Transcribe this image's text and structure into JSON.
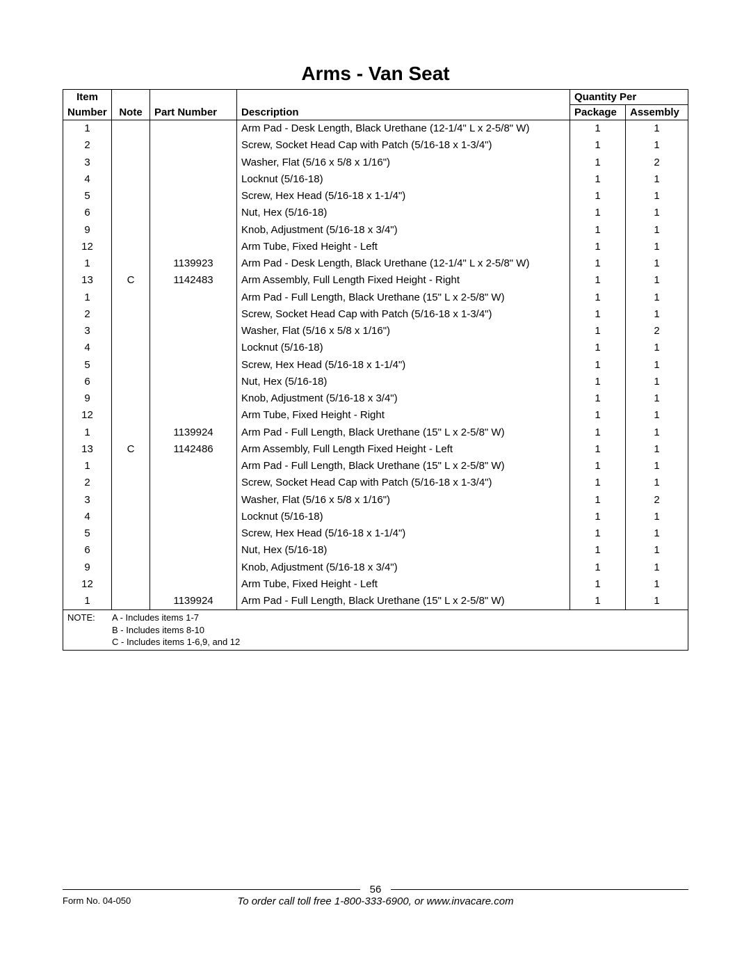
{
  "title": "Arms - Van Seat",
  "headers": {
    "item_top": "Item",
    "item_bottom": "Number",
    "note": "Note",
    "part": "Part Number",
    "desc": "Description",
    "qty_span": "Quantity Per",
    "pkg": "Package",
    "asm": "Assembly"
  },
  "rows": [
    {
      "item": "1",
      "note": "",
      "part": "",
      "desc": "Arm Pad - Desk Length, Black Urethane (12-1/4\" L x 2-5/8\" W)",
      "pkg": "1",
      "asm": "1"
    },
    {
      "item": "2",
      "note": "",
      "part": "",
      "desc": "Screw, Socket Head Cap with Patch (5/16-18 x 1-3/4\")",
      "pkg": "1",
      "asm": "1"
    },
    {
      "item": "3",
      "note": "",
      "part": "",
      "desc": "Washer, Flat (5/16 x 5/8 x 1/16\")",
      "pkg": "1",
      "asm": "2"
    },
    {
      "item": "4",
      "note": "",
      "part": "",
      "desc": "Locknut (5/16-18)",
      "pkg": "1",
      "asm": "1"
    },
    {
      "item": "5",
      "note": "",
      "part": "",
      "desc": "Screw, Hex Head (5/16-18 x 1-1/4\")",
      "pkg": "1",
      "asm": "1"
    },
    {
      "item": "6",
      "note": "",
      "part": "",
      "desc": "Nut, Hex (5/16-18)",
      "pkg": "1",
      "asm": "1"
    },
    {
      "item": "9",
      "note": "",
      "part": "",
      "desc": "Knob, Adjustment (5/16-18 x 3/4\")",
      "pkg": "1",
      "asm": "1"
    },
    {
      "item": "12",
      "note": "",
      "part": "",
      "desc": "Arm Tube, Fixed Height - Left",
      "pkg": "1",
      "asm": "1"
    },
    {
      "item": "1",
      "note": "",
      "part": "1139923",
      "desc": "Arm Pad - Desk Length, Black Urethane (12-1/4\" L x 2-5/8\" W)",
      "pkg": "1",
      "asm": "1"
    },
    {
      "item": "13",
      "note": "C",
      "part": "1142483",
      "desc": "Arm Assembly, Full Length Fixed Height - Right",
      "pkg": "1",
      "asm": "1"
    },
    {
      "item": "1",
      "note": "",
      "part": "",
      "desc": "Arm Pad - Full Length, Black Urethane (15\" L x 2-5/8\" W)",
      "pkg": "1",
      "asm": "1"
    },
    {
      "item": "2",
      "note": "",
      "part": "",
      "desc": "Screw, Socket Head Cap with Patch (5/16-18 x 1-3/4\")",
      "pkg": "1",
      "asm": "1"
    },
    {
      "item": "3",
      "note": "",
      "part": "",
      "desc": "Washer, Flat (5/16 x 5/8 x 1/16\")",
      "pkg": "1",
      "asm": "2"
    },
    {
      "item": "4",
      "note": "",
      "part": "",
      "desc": "Locknut (5/16-18)",
      "pkg": "1",
      "asm": "1"
    },
    {
      "item": "5",
      "note": "",
      "part": "",
      "desc": "Screw, Hex Head (5/16-18 x 1-1/4\")",
      "pkg": "1",
      "asm": "1"
    },
    {
      "item": "6",
      "note": "",
      "part": "",
      "desc": "Nut, Hex (5/16-18)",
      "pkg": "1",
      "asm": "1"
    },
    {
      "item": "9",
      "note": "",
      "part": "",
      "desc": "Knob, Adjustment (5/16-18 x 3/4\")",
      "pkg": "1",
      "asm": "1"
    },
    {
      "item": "12",
      "note": "",
      "part": "",
      "desc": "Arm Tube, Fixed Height - Right",
      "pkg": "1",
      "asm": "1"
    },
    {
      "item": "1",
      "note": "",
      "part": "1139924",
      "desc": "Arm Pad - Full Length, Black Urethane (15\" L x 2-5/8\" W)",
      "pkg": "1",
      "asm": "1"
    },
    {
      "item": "13",
      "note": "C",
      "part": "1142486",
      "desc": "Arm Assembly, Full Length Fixed Height - Left",
      "pkg": "1",
      "asm": "1"
    },
    {
      "item": "1",
      "note": "",
      "part": "",
      "desc": "Arm Pad - Full Length, Black Urethane (15\" L x 2-5/8\" W)",
      "pkg": "1",
      "asm": "1"
    },
    {
      "item": "2",
      "note": "",
      "part": "",
      "desc": "Screw, Socket Head Cap with Patch (5/16-18 x 1-3/4\")",
      "pkg": "1",
      "asm": "1"
    },
    {
      "item": "3",
      "note": "",
      "part": "",
      "desc": "Washer, Flat (5/16 x 5/8 x 1/16\")",
      "pkg": "1",
      "asm": "2"
    },
    {
      "item": "4",
      "note": "",
      "part": "",
      "desc": "Locknut (5/16-18)",
      "pkg": "1",
      "asm": "1"
    },
    {
      "item": "5",
      "note": "",
      "part": "",
      "desc": "Screw, Hex Head (5/16-18 x 1-1/4\")",
      "pkg": "1",
      "asm": "1"
    },
    {
      "item": "6",
      "note": "",
      "part": "",
      "desc": "Nut, Hex (5/16-18)",
      "pkg": "1",
      "asm": "1"
    },
    {
      "item": "9",
      "note": "",
      "part": "",
      "desc": "Knob, Adjustment (5/16-18 x 3/4\")",
      "pkg": "1",
      "asm": "1"
    },
    {
      "item": "12",
      "note": "",
      "part": "",
      "desc": "Arm Tube, Fixed Height - Left",
      "pkg": "1",
      "asm": "1"
    },
    {
      "item": "1",
      "note": "",
      "part": "1139924",
      "desc": "Arm Pad - Full Length, Black Urethane (15\" L x 2-5/8\" W)",
      "pkg": "1",
      "asm": "1"
    }
  ],
  "notes": {
    "label": "NOTE:",
    "lines": [
      "A - Includes items 1-7",
      "B - Includes items 8-10",
      "C - Includes items 1-6,9, and 12"
    ]
  },
  "footer": {
    "page": "56",
    "form": "Form No. 04-050",
    "order": "To order call toll free 1-800-333-6900, or www.invacare.com"
  }
}
